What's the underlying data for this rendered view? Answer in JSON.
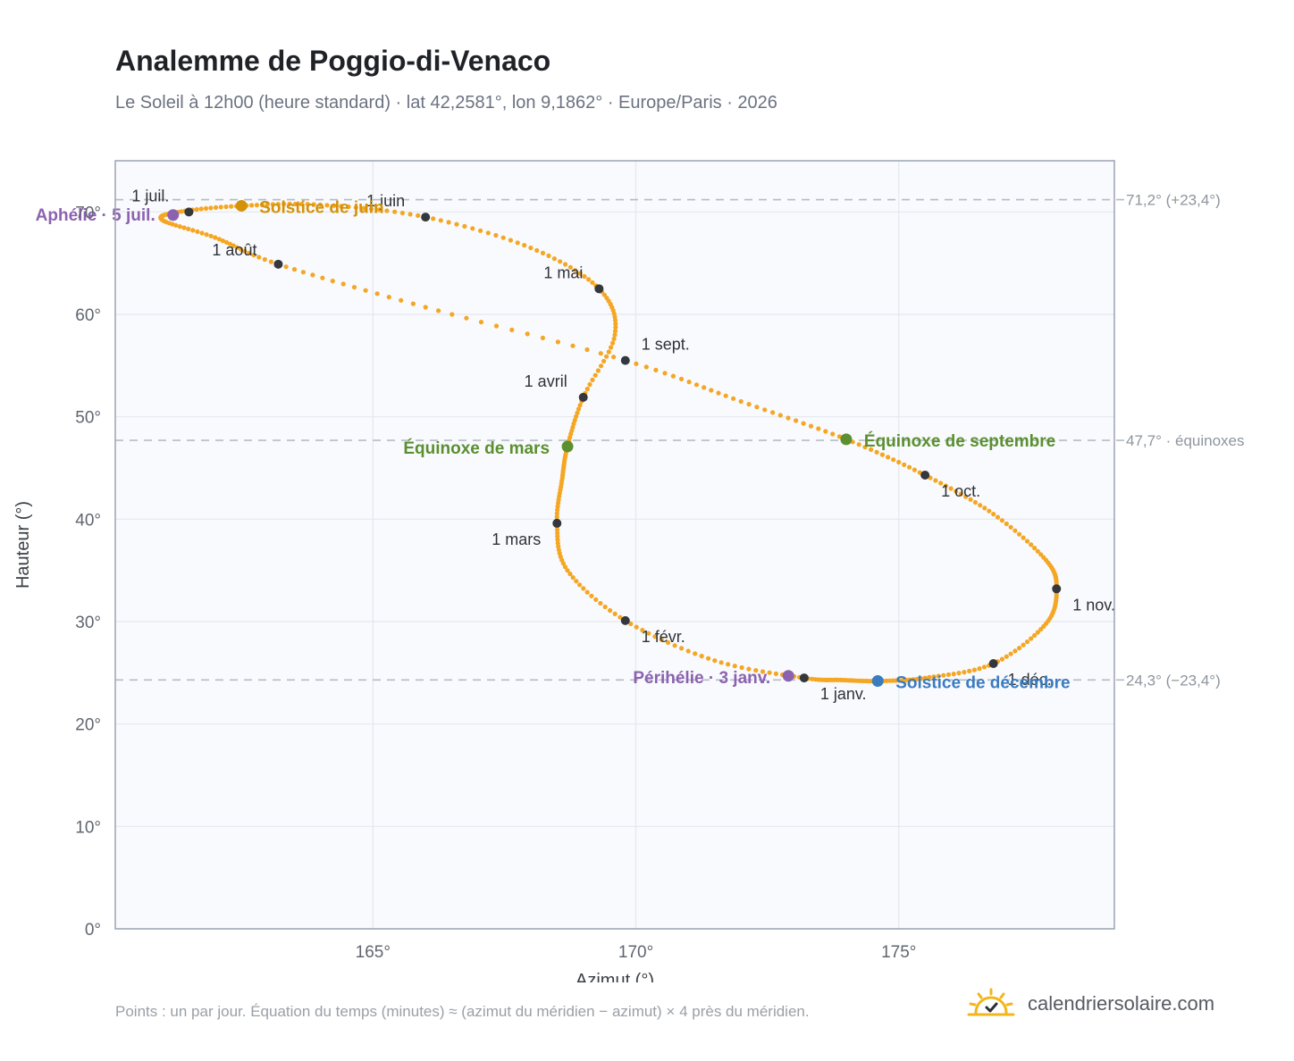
{
  "title": "Analemme de Poggio-di-Venaco",
  "subtitle": "Le Soleil à 12h00 (heure standard) · lat 42,2581°, lon 9,1862° · Europe/Paris · 2026",
  "footnote": "Points : un par jour. Équation du temps (minutes) ≈ (azimut du méridien − azimut) × 4 près du méridien.",
  "brand": {
    "name": "calendriersolaire.com",
    "icon": "sun-check-logo-icon",
    "color": "#f2b619"
  },
  "colors": {
    "curve": "#f5a623",
    "monthDot": "#34373c",
    "solsticeJune": "#d4920a",
    "solsticeDecember": "#3b7bc0",
    "equinox": "#5b8f2f",
    "apsides": "#8b62b0",
    "refLine": "#b4bcc6",
    "frame": "#9aa3b2",
    "plotBg": "#f8fafd"
  },
  "chart_data": {
    "type": "scatter",
    "xlabel": "Azimut (°)",
    "ylabel": "Hauteur (°)",
    "xlim": [
      160.1,
      179.1
    ],
    "ylim": [
      0,
      75
    ],
    "xticks": [
      {
        "v": 165,
        "label": "165°"
      },
      {
        "v": 170,
        "label": "170°"
      },
      {
        "v": 175,
        "label": "175°"
      }
    ],
    "yticks": [
      {
        "v": 0,
        "label": "0°"
      },
      {
        "v": 10,
        "label": "10°"
      },
      {
        "v": 20,
        "label": "20°"
      },
      {
        "v": 30,
        "label": "30°"
      },
      {
        "v": 40,
        "label": "40°"
      },
      {
        "v": 50,
        "label": "50°"
      },
      {
        "v": 60,
        "label": "60°"
      },
      {
        "v": 70,
        "label": "70°"
      }
    ],
    "grid": true,
    "reference_lines": [
      {
        "y": 71.2,
        "label": "71,2° (+23,4°)"
      },
      {
        "y": 47.7,
        "label": "47,7° · équinoxes"
      },
      {
        "y": 24.3,
        "label": "24,3° (−23,4°)"
      }
    ],
    "analemma_path": [
      [
        173.2,
        24.5
      ],
      [
        171.5,
        26.2
      ],
      [
        169.8,
        30.1
      ],
      [
        168.7,
        35.0
      ],
      [
        168.5,
        39.6
      ],
      [
        168.6,
        44.0
      ],
      [
        168.7,
        47.1
      ],
      [
        169.0,
        51.9
      ],
      [
        169.6,
        58.0
      ],
      [
        169.3,
        62.5
      ],
      [
        168.0,
        66.5
      ],
      [
        166.0,
        69.5
      ],
      [
        164.0,
        70.7
      ],
      [
        162.5,
        70.6
      ],
      [
        161.3,
        70.0
      ],
      [
        161.0,
        69.2
      ],
      [
        162.0,
        67.5
      ],
      [
        163.2,
        64.9
      ],
      [
        166.0,
        60.7
      ],
      [
        169.8,
        55.5
      ],
      [
        172.0,
        51.5
      ],
      [
        174.0,
        47.8
      ],
      [
        175.5,
        44.3
      ],
      [
        176.8,
        40.5
      ],
      [
        177.8,
        36.0
      ],
      [
        178.0,
        33.2
      ],
      [
        177.8,
        29.8
      ],
      [
        176.8,
        25.9
      ],
      [
        175.5,
        24.5
      ],
      [
        174.6,
        24.2
      ],
      [
        173.9,
        24.3
      ],
      [
        173.2,
        24.5
      ]
    ],
    "month_points": [
      {
        "label": "1 janv.",
        "x": 173.2,
        "y": 24.5
      },
      {
        "label": "1 févr.",
        "x": 169.8,
        "y": 30.1
      },
      {
        "label": "1 mars",
        "x": 168.5,
        "y": 39.6
      },
      {
        "label": "1 avril",
        "x": 169.0,
        "y": 51.9
      },
      {
        "label": "1 mai",
        "x": 169.3,
        "y": 62.5
      },
      {
        "label": "1 juin",
        "x": 166.0,
        "y": 69.5
      },
      {
        "label": "1 juil.",
        "x": 161.5,
        "y": 70.0
      },
      {
        "label": "1 août",
        "x": 163.2,
        "y": 64.9
      },
      {
        "label": "1 sept.",
        "x": 169.8,
        "y": 55.5
      },
      {
        "label": "1 oct.",
        "x": 175.5,
        "y": 44.3
      },
      {
        "label": "1 nov.",
        "x": 178.0,
        "y": 33.2
      },
      {
        "label": "1 déc.",
        "x": 176.8,
        "y": 25.9
      }
    ],
    "events": [
      {
        "label": "Solstice de juin",
        "x": 162.5,
        "y": 70.6,
        "color": "#d4920a"
      },
      {
        "label": "Solstice de décembre",
        "x": 174.6,
        "y": 24.2,
        "color": "#3b7bc0"
      },
      {
        "label": "Équinoxe de mars",
        "x": 168.7,
        "y": 47.1,
        "color": "#5b8f2f"
      },
      {
        "label": "Équinoxe de septembre",
        "x": 174.0,
        "y": 47.8,
        "color": "#5b8f2f"
      },
      {
        "label": "Aphélie · 5 juil.",
        "x": 161.2,
        "y": 69.7,
        "color": "#8b62b0"
      },
      {
        "label": "Périhélie · 3 janv.",
        "x": 172.9,
        "y": 24.7,
        "color": "#8b62b0"
      }
    ]
  }
}
